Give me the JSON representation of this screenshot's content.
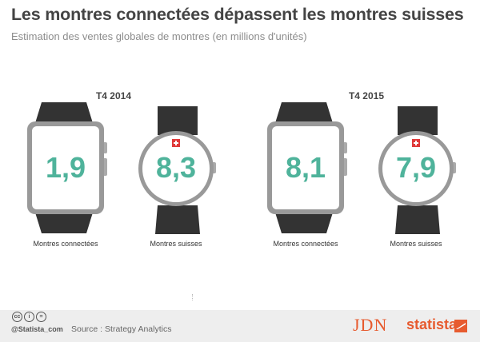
{
  "title": "Les montres connectées dépassent les montres suisses",
  "subtitle": "Estimation des ventes globales de montres (en millions d'unités)",
  "chart_data": {
    "type": "table",
    "title": "Les montres connectées dépassent les montres suisses",
    "subtitle": "Estimation des ventes globales de montres (en millions d'unités)",
    "panels": [
      {
        "period": "T4 2014",
        "items": [
          {
            "label": "Montres connectées",
            "value": 1.9,
            "display": "1,9"
          },
          {
            "label": "Montres suisses",
            "value": 8.3,
            "display": "8,3"
          }
        ]
      },
      {
        "period": "T4 2015",
        "items": [
          {
            "label": "Montres connectées",
            "value": 8.1,
            "display": "8,1"
          },
          {
            "label": "Montres suisses",
            "value": 7.9,
            "display": "7,9"
          }
        ]
      }
    ]
  },
  "footer": {
    "handle": "@Statista_com",
    "source": "Source : Strategy Analytics",
    "logo_jdn": "JDN",
    "logo_statista": "statista",
    "license_icons": [
      "cc-icon",
      "by-icon",
      "nd-icon"
    ]
  },
  "colors": {
    "value_teal": "#4fb39b",
    "title": "#444444",
    "strap": "#333333",
    "brand": "#e75b2f"
  }
}
